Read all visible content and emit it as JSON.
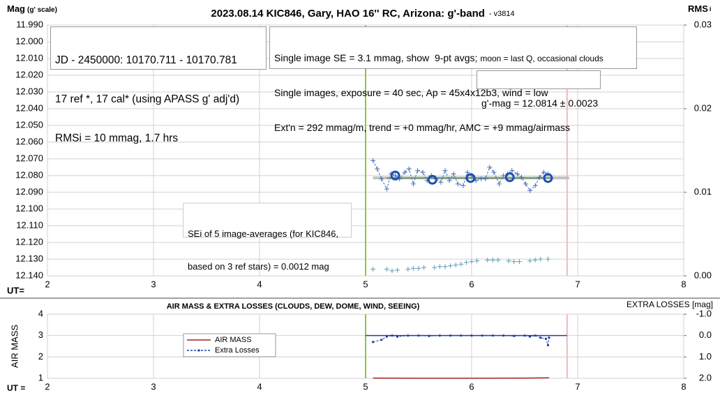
{
  "chart_data": [
    {
      "type": "scatter",
      "title": "2023.08.14 KIC846, Gary, HAO 16'' RC, Arizona: g'-band",
      "version": "- v3814",
      "ylabel": "Mag",
      "ylabel_note": "(g' scale)",
      "y2label": "RMS",
      "y2label_sub": "i",
      "xlabel": "UT=",
      "xlim": [
        2,
        8
      ],
      "xticks": [
        2,
        3,
        4,
        5,
        6,
        7,
        8
      ],
      "ylim": [
        12.14,
        11.99
      ],
      "yticks": [
        {
          "value": 11.99,
          "label": "11.990"
        },
        {
          "value": 12.0,
          "label": "12.000"
        },
        {
          "value": 12.01,
          "label": "12.010"
        },
        {
          "value": 12.02,
          "label": "12.020"
        },
        {
          "value": 12.03,
          "label": "12.030"
        },
        {
          "value": 12.04,
          "label": "12.040"
        },
        {
          "value": 12.05,
          "label": "12.050"
        },
        {
          "value": 12.06,
          "label": "12.060"
        },
        {
          "value": 12.07,
          "label": "12.070"
        },
        {
          "value": 12.08,
          "label": "12.080"
        },
        {
          "value": 12.09,
          "label": "12.090"
        },
        {
          "value": 12.1,
          "label": "12.100"
        },
        {
          "value": 12.11,
          "label": "12.110"
        },
        {
          "value": 12.12,
          "label": "12.120"
        },
        {
          "value": 12.13,
          "label": "12.130"
        },
        {
          "value": 12.14,
          "label": "12.140"
        }
      ],
      "y2lim": [
        0,
        0.03
      ],
      "y2ticks": [
        {
          "value": 0,
          "label": "0.00"
        },
        0.01,
        0.02,
        0.03
      ],
      "grid": true,
      "vlines": [
        {
          "x": 5,
          "color": "#8cc63f"
        },
        {
          "x": 6.9,
          "color": "#f4b8b8"
        }
      ],
      "lines": [
        {
          "x": [
            5.07,
            6.92
          ],
          "values": [
            12.0814,
            12.0814
          ],
          "color": "#c0c0c0",
          "width": 4
        },
        {
          "x": [
            5.2,
            6.75
          ],
          "values": [
            12.0815,
            12.0815
          ],
          "color": "#6a9a6a",
          "width": 2
        }
      ],
      "series": [
        {
          "color": "#4a6fb8",
          "marker": "plus",
          "line": "dashed",
          "x": [
            5.07,
            5.11,
            5.15,
            5.2,
            5.24,
            5.28,
            5.32,
            5.37,
            5.41,
            5.45,
            5.49,
            5.54,
            5.58,
            5.62,
            5.66,
            5.71,
            5.75,
            5.79,
            5.83,
            5.87,
            5.92,
            5.96,
            6.0,
            6.04,
            6.09,
            6.13,
            6.17,
            6.21,
            6.26,
            6.3,
            6.34,
            6.38,
            6.43,
            6.47,
            6.51,
            6.55,
            6.6,
            6.64,
            6.68,
            6.72
          ],
          "values": [
            12.071,
            12.076,
            12.082,
            12.088,
            12.079,
            12.08,
            12.082,
            12.078,
            12.076,
            12.085,
            12.077,
            12.078,
            12.083,
            12.08,
            12.082,
            12.084,
            12.077,
            12.083,
            12.079,
            12.085,
            12.086,
            12.078,
            12.08,
            12.083,
            12.082,
            12.082,
            12.075,
            12.078,
            12.085,
            12.08,
            12.079,
            12.077,
            12.079,
            12.081,
            12.085,
            12.089,
            12.086,
            12.081,
            12.078,
            12.079
          ]
        },
        {
          "color": "#1f4fb0",
          "marker": "circle",
          "x": [
            5.28,
            5.63,
            5.99,
            6.36,
            6.72
          ],
          "values": [
            12.08,
            12.0825,
            12.0815,
            12.081,
            12.0815
          ]
        },
        {
          "color": "#5b9bb8",
          "marker": "plus",
          "axis": "y2",
          "x": [
            5.07,
            5.2,
            5.25,
            5.3,
            5.4,
            5.45,
            5.5,
            5.55,
            5.65,
            5.7,
            5.75,
            5.8,
            5.85,
            5.9,
            5.95,
            6.0,
            6.05,
            6.15,
            6.2,
            6.25,
            6.35,
            6.4,
            6.45,
            6.55,
            6.6,
            6.65,
            6.72
          ],
          "values": [
            0.0008,
            0.0008,
            0.0006,
            0.0007,
            0.0008,
            0.0009,
            0.0009,
            0.001,
            0.001,
            0.0011,
            0.0011,
            0.0012,
            0.0013,
            0.0014,
            0.0016,
            0.0017,
            0.0018,
            0.0019,
            0.0019,
            0.0019,
            0.0018,
            0.0017,
            0.0017,
            0.0018,
            0.0019,
            0.002,
            0.002
          ]
        }
      ],
      "annotations": [
        {
          "lines": [
            "JD - 2450000: 10170.711 - 10170.781",
            "17 ref *, 17 cal* (using APASS g' adj'd)",
            "RMSi = 10 mmag, 1.7 hrs"
          ]
        },
        {
          "lines": [
            "Single image SE = 3.1 mmag, show  9-pt avgs;",
            "moon = last Q, occasional clouds",
            "Single images, exposure = 40 sec, Ap = 45x4x12b3, wind = low",
            "Ext'n = 292 mmag/m, trend = +0 mmag/hr, AMC = +9 mmag/airmass"
          ]
        },
        {
          "lines": [
            "g'-mag = 12.0814 ± 0.0023"
          ]
        },
        {
          "lines": [
            "SEi of 5 image-averages (for KIC846,",
            "based on 3 ref stars) = 0.0012 mag"
          ]
        }
      ]
    },
    {
      "type": "line",
      "title": "AIR MASS & EXTRA LOSSES (CLOUDS, DEW, DOME, WIND, SEEING)",
      "ylabel": "AIR MASS",
      "y2label": "EXTRA LOSSES [mag]",
      "xlabel": "UT =",
      "xlim": [
        2,
        8
      ],
      "xticks": [
        2,
        3,
        4,
        5,
        6,
        7,
        8
      ],
      "ylim": [
        1,
        4
      ],
      "yticks": [
        1,
        2,
        3,
        4
      ],
      "y2lim": [
        2.0,
        -1.0
      ],
      "y2ticks": [
        {
          "value": -1,
          "label": "-1.0"
        },
        {
          "value": 0,
          "label": "0.0"
        },
        {
          "value": 1,
          "label": "1.0"
        },
        {
          "value": 2,
          "label": "2.0"
        }
      ],
      "grid": true,
      "vlines": [
        {
          "x": 5,
          "color": "#8cc63f"
        },
        {
          "x": 6.9,
          "color": "#f4b8b8"
        }
      ],
      "lines": [
        {
          "x": [
            5.0,
            6.9
          ],
          "values": [
            0,
            0
          ],
          "color": "#1f3f9f",
          "width": 1.5,
          "axis": "y2"
        }
      ],
      "series": [
        {
          "name": "AIR MASS",
          "color": "#a02020",
          "line": "solid",
          "x": [
            5.07,
            5.5,
            6.0,
            6.5,
            6.73
          ],
          "values": [
            1.01,
            1.0,
            1.0,
            1.01,
            1.02
          ]
        },
        {
          "name": "Extra Losses",
          "color": "#1f3f9f",
          "line": "dashed",
          "marker": "dot",
          "axis": "y2",
          "x": [
            5.07,
            5.15,
            5.2,
            5.25,
            5.3,
            5.4,
            5.5,
            5.6,
            5.7,
            5.8,
            5.9,
            6.0,
            6.1,
            6.2,
            6.3,
            6.4,
            6.5,
            6.55,
            6.6,
            6.65,
            6.7,
            6.72,
            6.73
          ],
          "values": [
            0.3,
            0.2,
            0.05,
            0.0,
            0.05,
            0.0,
            0.0,
            0.02,
            0.0,
            0.0,
            0.0,
            0.0,
            0.0,
            0.0,
            0.0,
            0.02,
            0.0,
            0.05,
            0.0,
            0.1,
            0.15,
            0.45,
            0.1
          ]
        }
      ]
    }
  ]
}
